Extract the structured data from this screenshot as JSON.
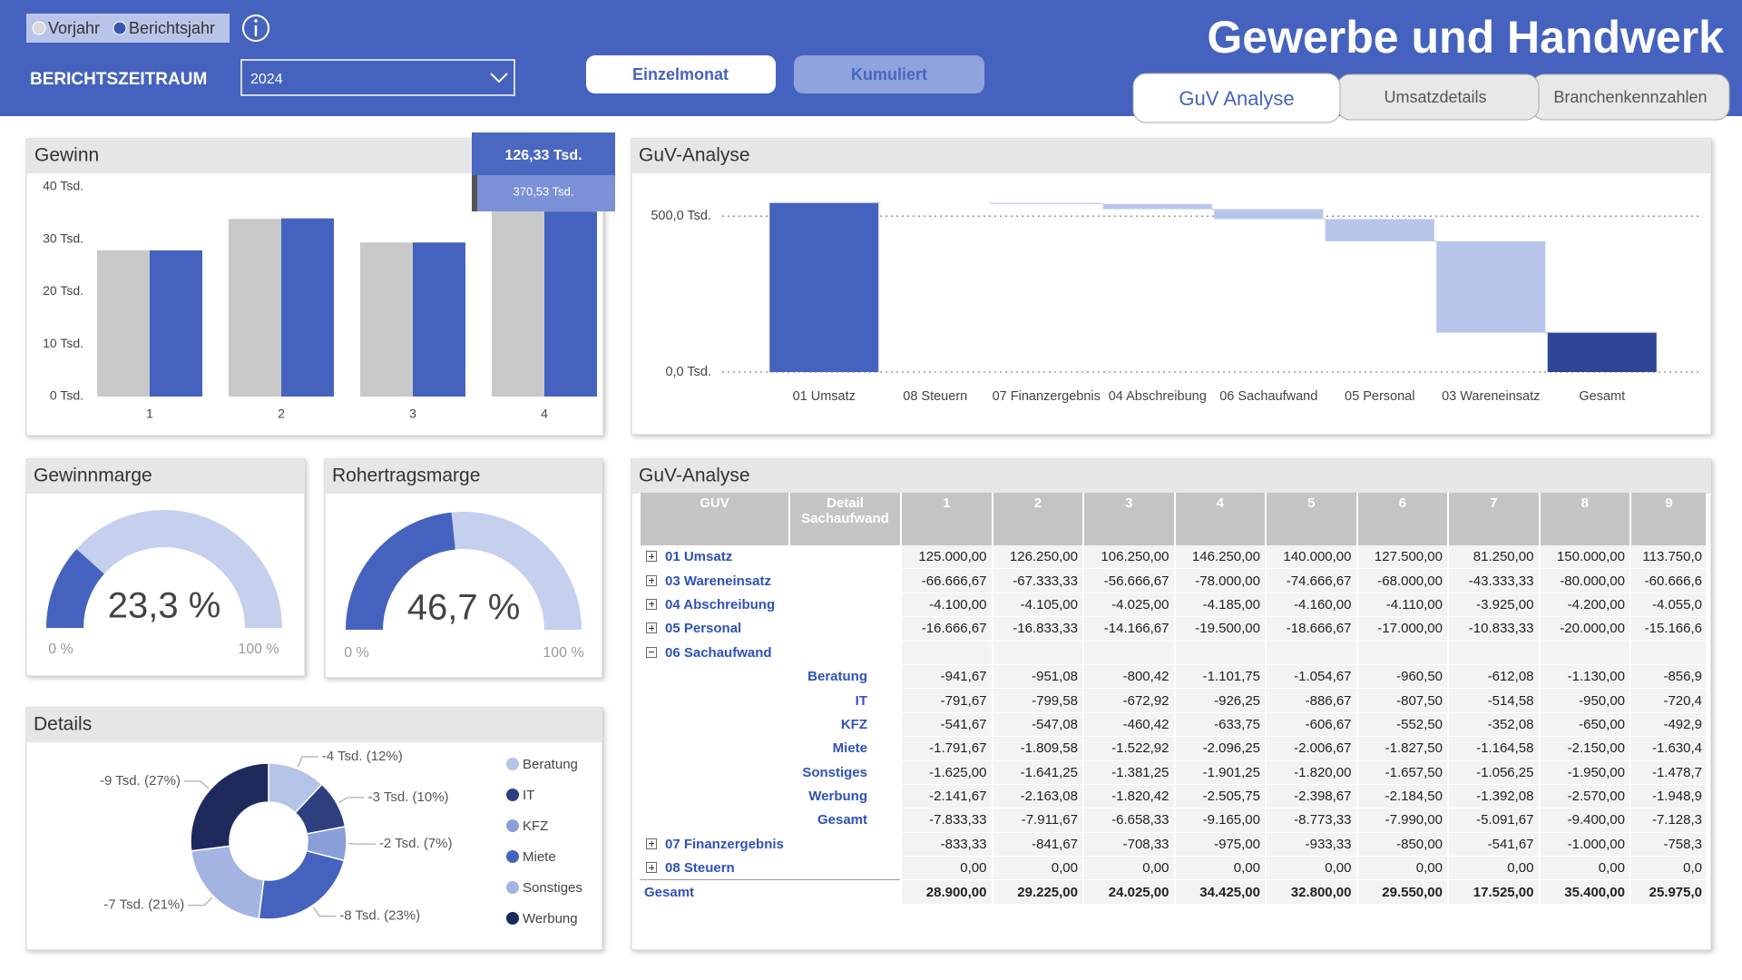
{
  "header": {
    "period_label": "BERICHTSZEITRAUM",
    "period_value": "2024",
    "buttons": [
      "Einzelmonat",
      "Kumuliert"
    ],
    "title": "Gewerbe und Handwerk",
    "tabs": [
      "GuV Analyse",
      "Umsatzdetails",
      "Branchenkennzahlen"
    ]
  },
  "chart_data": [
    {
      "type": "bar",
      "title": "Gewinn",
      "categories": [
        "1",
        "2",
        "3",
        "4"
      ],
      "series": [
        {
          "name": "Vorjahr",
          "color": "#c8c8c8",
          "values": [
            27900,
            33900,
            29400,
            35300
          ]
        },
        {
          "name": "Berichtsjahr",
          "color": "#4563be",
          "values": [
            27900,
            34000,
            29400,
            35300
          ]
        }
      ],
      "ylim": [
        0,
        40000
      ],
      "yticks": [
        {
          "value": 0,
          "label": "0 Tsd."
        },
        {
          "value": 10000,
          "label": "10 Tsd."
        },
        {
          "value": 20000,
          "label": "20 Tsd."
        },
        {
          "value": 30000,
          "label": "30 Tsd."
        },
        {
          "value": 40000,
          "label": "40 Tsd."
        }
      ],
      "tooltip": {
        "title": "126,33 Tsd.",
        "value": "370,53 Tsd."
      }
    },
    {
      "type": "waterfall",
      "title": "GuV-Analyse",
      "categories": [
        "01 Umsatz",
        "08 Steuern",
        "07 Finanzergebnis",
        "04 Abschreibung",
        "06 Sachaufwand",
        "05 Personal",
        "03 Wareneinsatz",
        "Gesamt"
      ],
      "values": [
        542500,
        0,
        -3500,
        -16500,
        -32000,
        -71000,
        -293170,
        126330
      ],
      "is_total": [
        false,
        false,
        false,
        false,
        false,
        false,
        false,
        true
      ],
      "colors": {
        "increase": "#4563be",
        "decrease": "#b7c5ea",
        "total": "#2e4596"
      },
      "ylim": [
        0,
        585000
      ],
      "yticks": [
        {
          "value": 0,
          "label": "0,0 Tsd."
        },
        {
          "value": 500000,
          "label": "500,0 Tsd."
        }
      ],
      "grid": true
    },
    {
      "type": "gauge",
      "title": "Gewinnmarge",
      "value": 23.3,
      "value_label": "23,3 %",
      "ylim": [
        0,
        100
      ],
      "yticks": [
        {
          "value": 0,
          "label": "0 %"
        },
        {
          "value": 100,
          "label": "100 %"
        }
      ],
      "colors": {
        "fill": "#4563be",
        "track": "#c5d0ee"
      }
    },
    {
      "type": "gauge",
      "title": "Rohertragsmarge",
      "value": 46.7,
      "value_label": "46,7 %",
      "ylim": [
        0,
        100
      ],
      "yticks": [
        {
          "value": 0,
          "label": "0 %"
        },
        {
          "value": 100,
          "label": "100 %"
        }
      ],
      "colors": {
        "fill": "#4563be",
        "track": "#c5d0ee"
      }
    },
    {
      "type": "donut",
      "title": "Details",
      "categories": [
        "Beratung",
        "IT",
        "KFZ",
        "Miete",
        "Sonstiges",
        "Werbung"
      ],
      "values": [
        12,
        10,
        7,
        23,
        21,
        27
      ],
      "value_labels": [
        "-4 Tsd. (12%)",
        "-3 Tsd. (10%)",
        "-2 Tsd. (7%)",
        "-8 Tsd. (23%)",
        "-7 Tsd. (21%)",
        "-9 Tsd. (27%)"
      ],
      "colors": [
        "#b4c3e8",
        "#2e3f80",
        "#8a9fd8",
        "#4563be",
        "#a3b4e2",
        "#1f2a5c"
      ]
    }
  ],
  "table": {
    "title": "GuV-Analyse",
    "columns": [
      "GUV",
      "Detail Sachaufwand",
      "1",
      "2",
      "3",
      "4",
      "5",
      "6",
      "7",
      "8",
      "9"
    ],
    "rows": [
      {
        "guv": "01 Umsatz",
        "expanded": false,
        "values": [
          "125.000,00",
          "126.250,00",
          "106.250,00",
          "146.250,00",
          "140.000,00",
          "127.500,00",
          "81.250,00",
          "150.000,00",
          "113.750,0"
        ]
      },
      {
        "guv": "03 Wareneinsatz",
        "expanded": false,
        "values": [
          "-66.666,67",
          "-67.333,33",
          "-56.666,67",
          "-78.000,00",
          "-74.666,67",
          "-68.000,00",
          "-43.333,33",
          "-80.000,00",
          "-60.666,6"
        ]
      },
      {
        "guv": "04 Abschreibung",
        "expanded": false,
        "values": [
          "-4.100,00",
          "-4.105,00",
          "-4.025,00",
          "-4.185,00",
          "-4.160,00",
          "-4.110,00",
          "-3.925,00",
          "-4.200,00",
          "-4.055,0"
        ]
      },
      {
        "guv": "05 Personal",
        "expanded": false,
        "values": [
          "-16.666,67",
          "-16.833,33",
          "-14.166,67",
          "-19.500,00",
          "-18.666,67",
          "-17.000,00",
          "-10.833,33",
          "-20.000,00",
          "-15.166,6"
        ]
      },
      {
        "guv": "06 Sachaufwand",
        "expanded": true
      },
      {
        "detail": "Beratung",
        "values": [
          "-941,67",
          "-951,08",
          "-800,42",
          "-1.101,75",
          "-1.054,67",
          "-960,50",
          "-612,08",
          "-1.130,00",
          "-856,9"
        ]
      },
      {
        "detail": "IT",
        "values": [
          "-791,67",
          "-799,58",
          "-672,92",
          "-926,25",
          "-886,67",
          "-807,50",
          "-514,58",
          "-950,00",
          "-720,4"
        ]
      },
      {
        "detail": "KFZ",
        "values": [
          "-541,67",
          "-547,08",
          "-460,42",
          "-633,75",
          "-606,67",
          "-552,50",
          "-352,08",
          "-650,00",
          "-492,9"
        ]
      },
      {
        "detail": "Miete",
        "values": [
          "-1.791,67",
          "-1.809,58",
          "-1.522,92",
          "-2.096,25",
          "-2.006,67",
          "-1.827,50",
          "-1.164,58",
          "-2.150,00",
          "-1.630,4"
        ]
      },
      {
        "detail": "Sonstiges",
        "values": [
          "-1.625,00",
          "-1.641,25",
          "-1.381,25",
          "-1.901,25",
          "-1.820,00",
          "-1.657,50",
          "-1.056,25",
          "-1.950,00",
          "-1.478,7"
        ]
      },
      {
        "detail": "Werbung",
        "values": [
          "-2.141,67",
          "-2.163,08",
          "-1.820,42",
          "-2.505,75",
          "-2.398,67",
          "-2.184,50",
          "-1.392,08",
          "-2.570,00",
          "-1.948,9"
        ]
      },
      {
        "detail": "Gesamt",
        "values": [
          "-7.833,33",
          "-7.911,67",
          "-6.658,33",
          "-9.165,00",
          "-8.773,33",
          "-7.990,00",
          "-5.091,67",
          "-9.400,00",
          "-7.128,3"
        ]
      },
      {
        "guv": "07 Finanzergebnis",
        "expanded": false,
        "values": [
          "-833,33",
          "-841,67",
          "-708,33",
          "-975,00",
          "-933,33",
          "-850,00",
          "-541,67",
          "-1.000,00",
          "-758,3"
        ]
      },
      {
        "guv": "08 Steuern",
        "expanded": false,
        "values": [
          "0,00",
          "0,00",
          "0,00",
          "0,00",
          "0,00",
          "0,00",
          "0,00",
          "0,00",
          "0,0"
        ]
      },
      {
        "guv": "Gesamt",
        "values": [
          "28.900,00",
          "29.225,00",
          "24.025,00",
          "34.425,00",
          "32.800,00",
          "29.550,00",
          "17.525,00",
          "35.400,00",
          "25.975,0"
        ]
      }
    ]
  }
}
